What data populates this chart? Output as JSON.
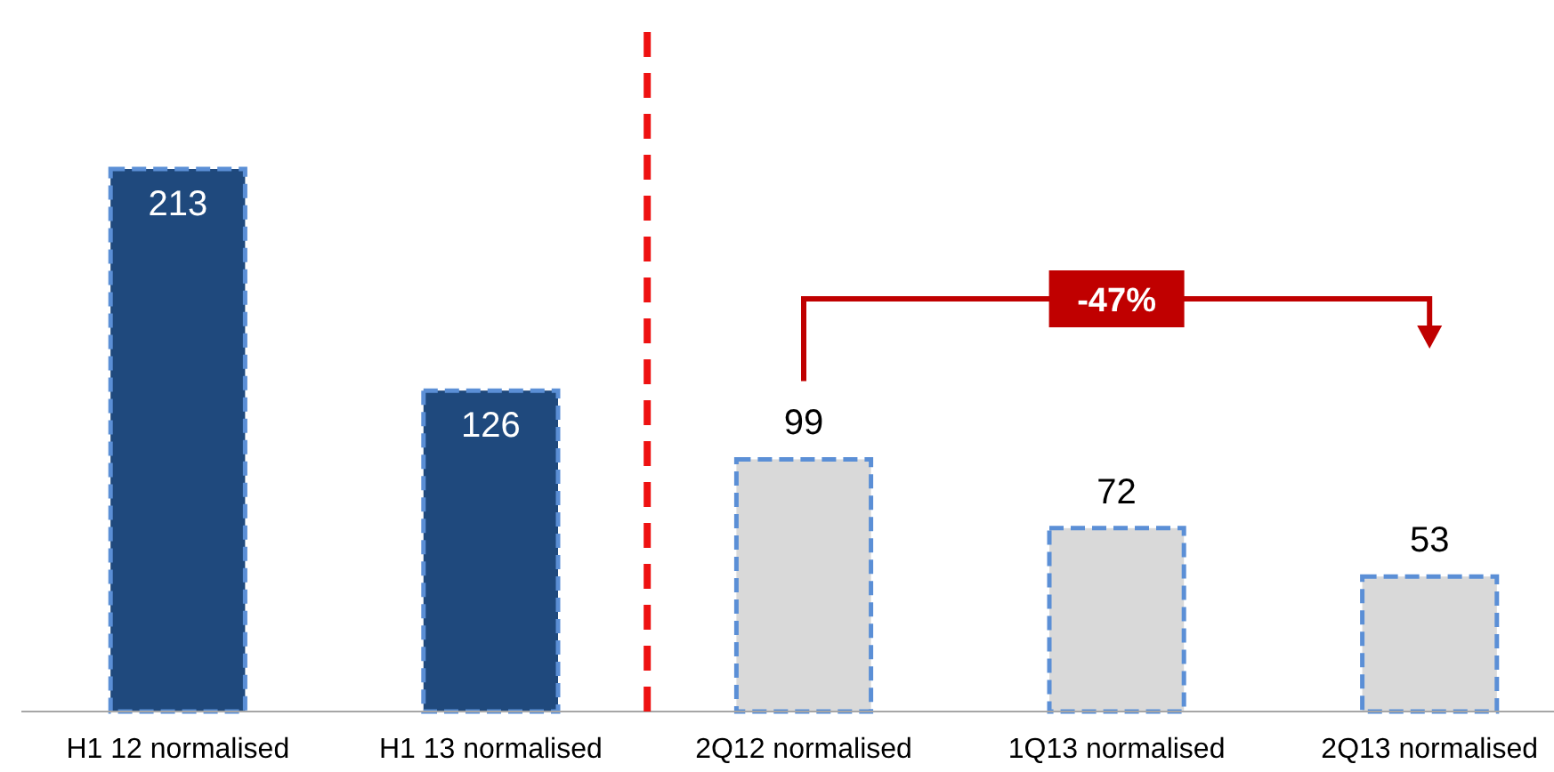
{
  "chart_data": {
    "type": "bar",
    "categories": [
      "H1 12 normalised",
      "H1 13 normalised",
      "2Q12 normalised",
      "1Q13 normalised",
      "2Q13 normalised"
    ],
    "values": [
      213,
      126,
      99,
      72,
      53
    ],
    "colors": [
      "#1f497d",
      "#1f497d",
      "#d9d9d9",
      "#d9d9d9",
      "#d9d9d9"
    ],
    "data_labels": true,
    "annotations": [
      "-47%"
    ]
  }
}
